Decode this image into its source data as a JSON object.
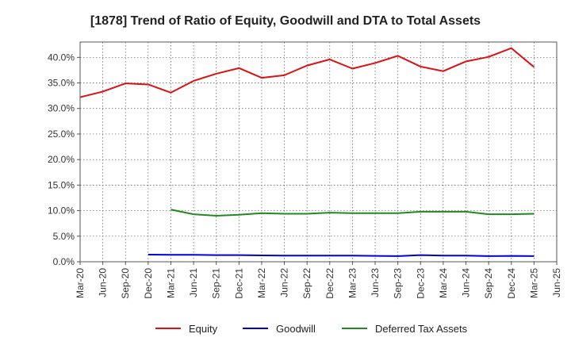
{
  "chart_data": {
    "type": "line",
    "title": "[1878]  Trend of Ratio of Equity, Goodwill and DTA to Total Assets",
    "xlabel": "",
    "ylabel": "",
    "x_tick_labels": [
      "Mar-20",
      "Jun-20",
      "Sep-20",
      "Dec-20",
      "Mar-21",
      "Jun-21",
      "Sep-21",
      "Dec-21",
      "Mar-22",
      "Jun-22",
      "Sep-22",
      "Dec-22",
      "Mar-23",
      "Jun-23",
      "Sep-23",
      "Dec-23",
      "Mar-24",
      "Jun-24",
      "Sep-24",
      "Dec-24",
      "Mar-25",
      "Jun-25"
    ],
    "y_tick_labels": [
      "0.0%",
      "5.0%",
      "10.0%",
      "15.0%",
      "20.0%",
      "25.0%",
      "30.0%",
      "35.0%",
      "40.0%"
    ],
    "ylim": [
      0,
      43
    ],
    "grid": true,
    "legend_position": "bottom",
    "series": [
      {
        "name": "Equity",
        "color": "#dd1111",
        "x": [
          "Mar-20",
          "Jun-20",
          "Sep-20",
          "Dec-20",
          "Mar-21",
          "Jun-21",
          "Sep-21",
          "Dec-21",
          "Mar-22",
          "Jun-22",
          "Sep-22",
          "Dec-22",
          "Mar-23",
          "Jun-23",
          "Sep-23",
          "Dec-23",
          "Mar-24",
          "Jun-24",
          "Sep-24",
          "Dec-24",
          "Mar-25"
        ],
        "values": [
          32.2,
          33.3,
          34.9,
          34.7,
          33.1,
          35.4,
          36.8,
          37.9,
          36.0,
          36.5,
          38.4,
          39.6,
          37.8,
          38.9,
          40.3,
          38.2,
          37.3,
          39.2,
          40.1,
          41.8,
          38.1
        ]
      },
      {
        "name": "Goodwill",
        "color": "#0000dd",
        "x": [
          "Dec-20",
          "Mar-21",
          "Jun-21",
          "Sep-21",
          "Dec-21",
          "Mar-22",
          "Jun-22",
          "Sep-22",
          "Dec-22",
          "Mar-23",
          "Jun-23",
          "Sep-23",
          "Dec-23",
          "Mar-24",
          "Jun-24",
          "Sep-24",
          "Dec-24",
          "Mar-25"
        ],
        "values": [
          1.4,
          1.35,
          1.35,
          1.3,
          1.3,
          1.25,
          1.2,
          1.2,
          1.2,
          1.2,
          1.15,
          1.1,
          1.3,
          1.2,
          1.2,
          1.1,
          1.15,
          1.1
        ]
      },
      {
        "name": "Deferred Tax Assets",
        "color": "#228822",
        "x": [
          "Mar-21",
          "Jun-21",
          "Sep-21",
          "Dec-21",
          "Mar-22",
          "Jun-22",
          "Sep-22",
          "Dec-22",
          "Mar-23",
          "Jun-23",
          "Sep-23",
          "Dec-23",
          "Mar-24",
          "Jun-24",
          "Sep-24",
          "Dec-24",
          "Mar-25"
        ],
        "values": [
          10.2,
          9.3,
          9.0,
          9.2,
          9.5,
          9.4,
          9.4,
          9.6,
          9.5,
          9.5,
          9.5,
          9.8,
          9.8,
          9.8,
          9.3,
          9.3,
          9.4
        ]
      }
    ]
  }
}
